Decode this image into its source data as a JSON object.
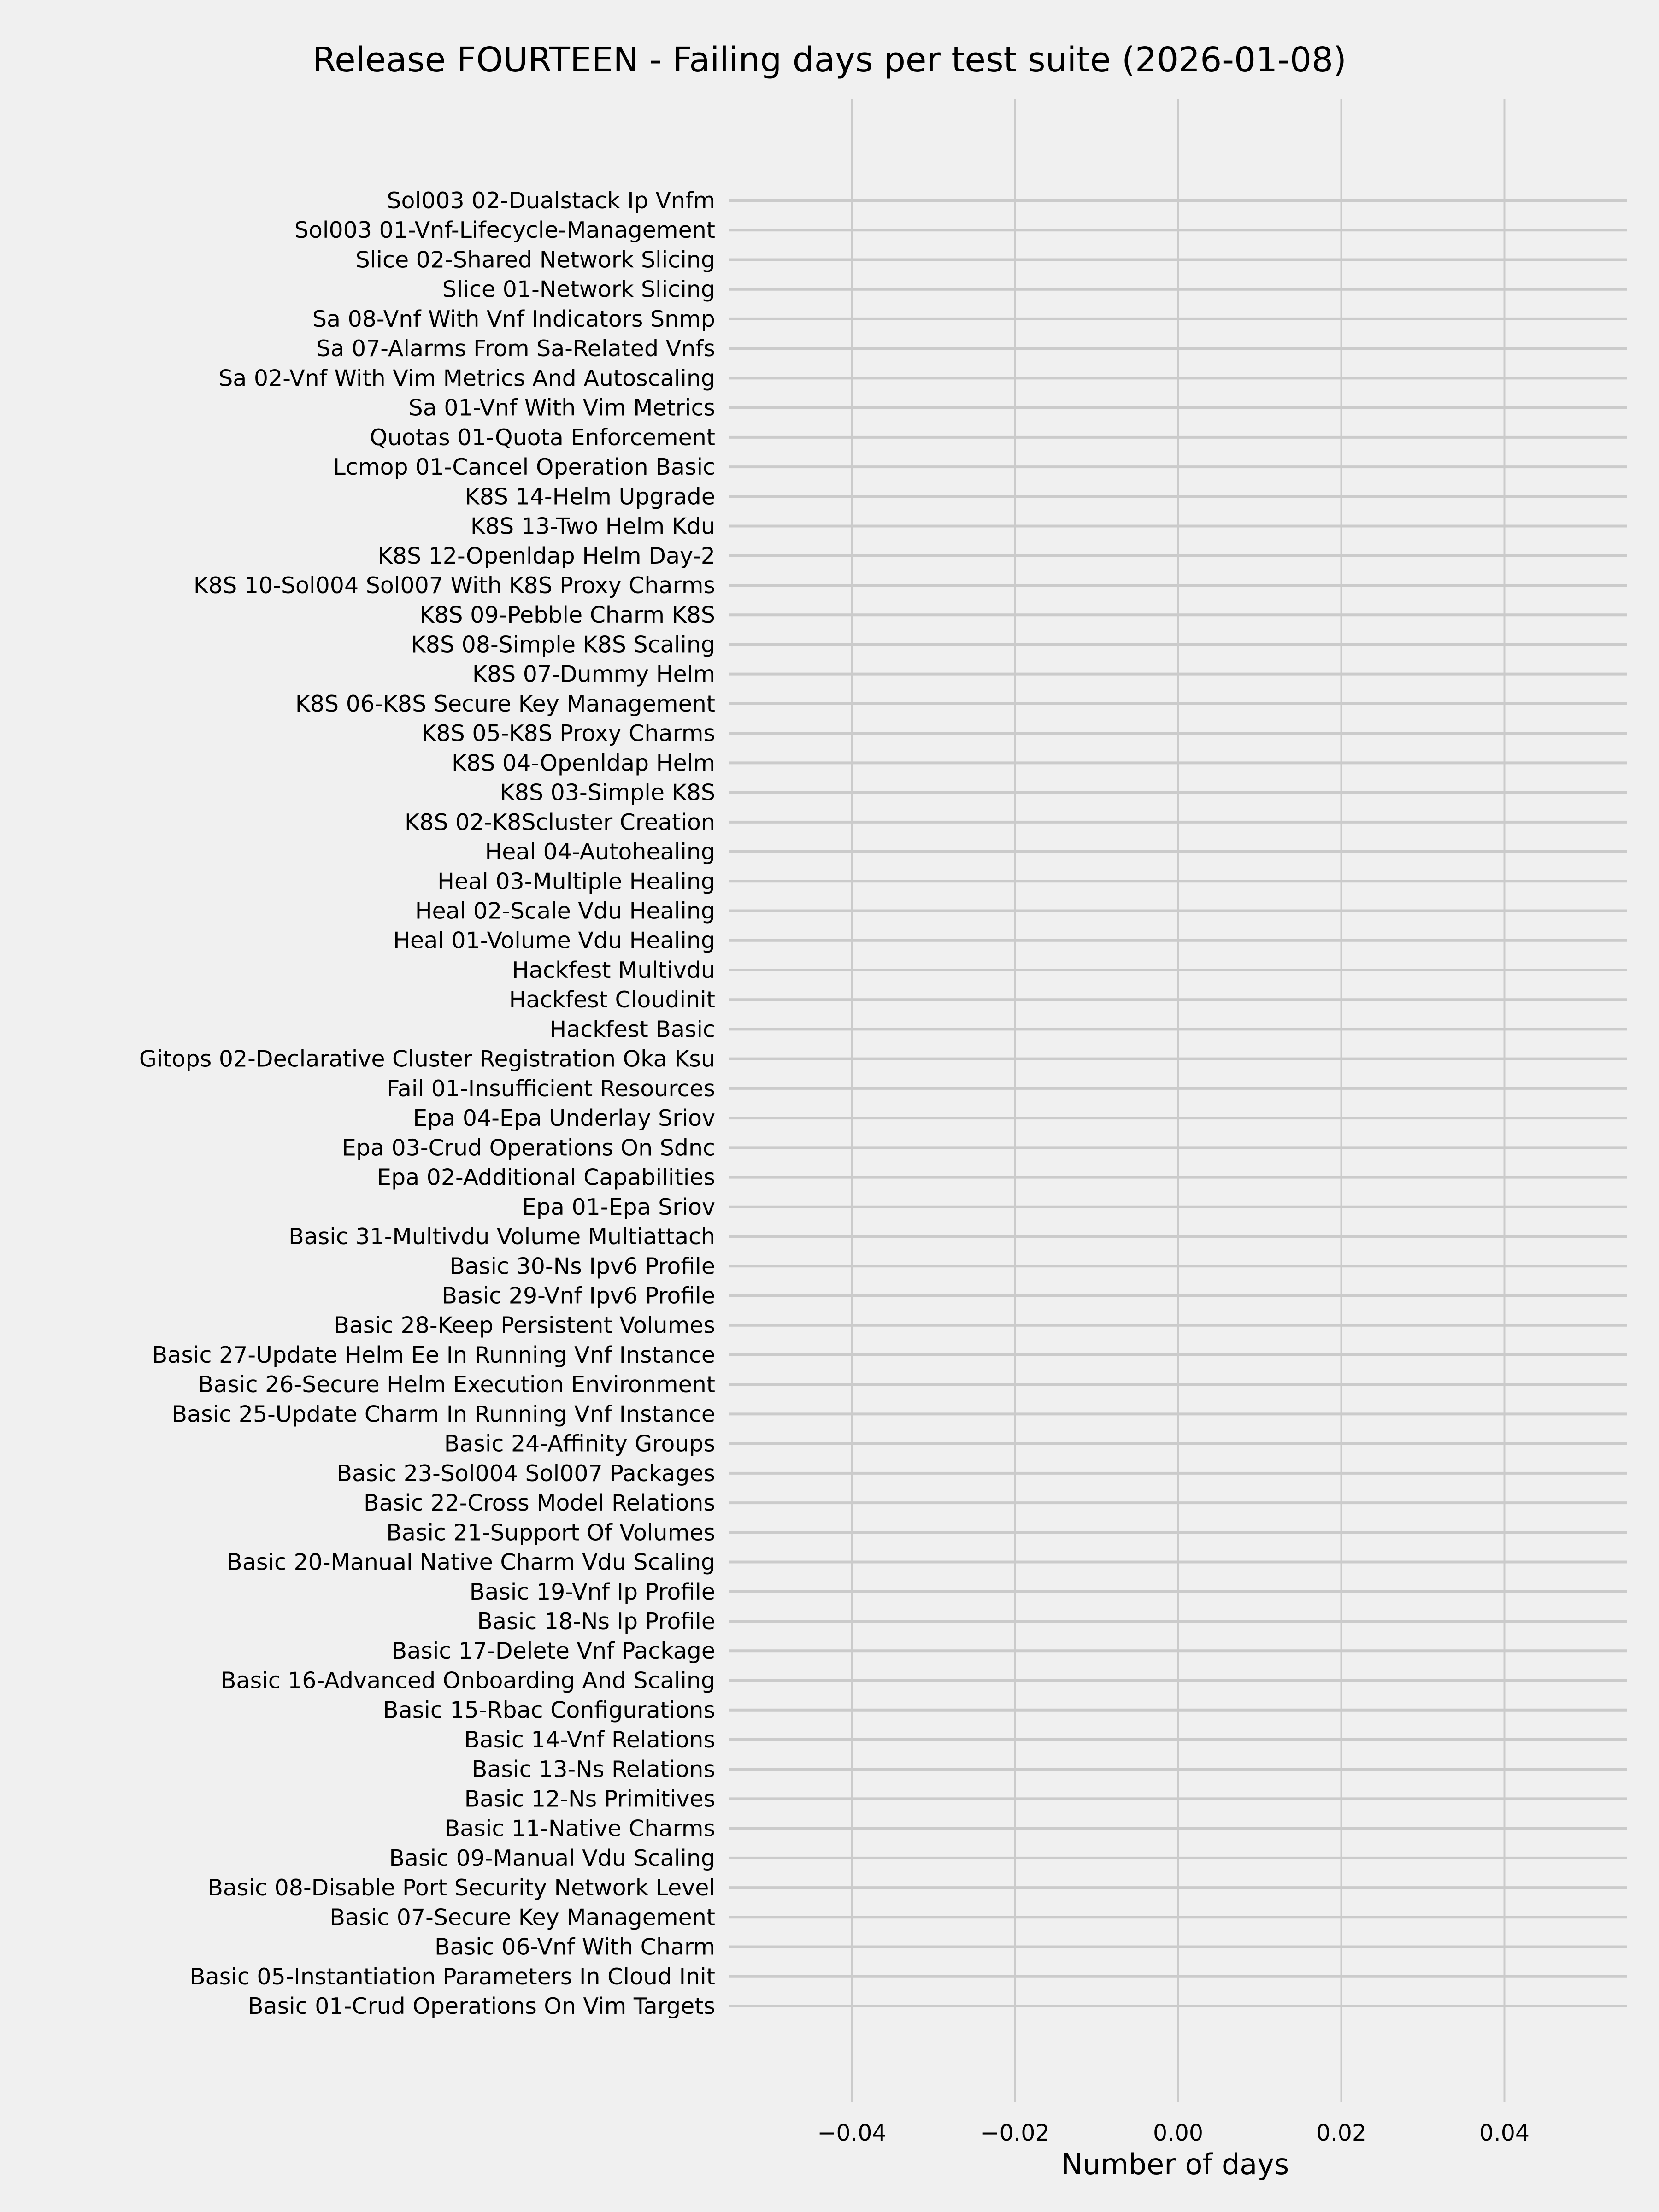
{
  "chart_data": {
    "type": "bar",
    "orientation": "horizontal",
    "title": "Release FOURTEEN - Failing days per test suite (2026-01-08)",
    "xlabel": "Number of days",
    "ylabel": "",
    "xlim": [
      -0.055,
      0.055
    ],
    "xticks": [
      -0.04,
      -0.02,
      0.0,
      0.02,
      0.04
    ],
    "xtick_labels": [
      "−0.04",
      "−0.02",
      "0.00",
      "0.02",
      "0.04"
    ],
    "grid": true,
    "colors": {
      "background": "#f0f0f0",
      "grid": "#cbcbcb",
      "bar": "#008fd5"
    },
    "categories": [
      "Sol003 02-Dualstack Ip Vnfm",
      "Sol003 01-Vnf-Lifecycle-Management",
      "Slice 02-Shared Network Slicing",
      "Slice 01-Network Slicing",
      "Sa 08-Vnf With Vnf Indicators Snmp",
      "Sa 07-Alarms From Sa-Related Vnfs",
      "Sa 02-Vnf With Vim Metrics And Autoscaling",
      "Sa 01-Vnf With Vim Metrics",
      "Quotas 01-Quota Enforcement",
      "Lcmop 01-Cancel Operation Basic",
      "K8S 14-Helm Upgrade",
      "K8S 13-Two Helm Kdu",
      "K8S 12-Openldap Helm Day-2",
      "K8S 10-Sol004 Sol007 With K8S Proxy Charms",
      "K8S 09-Pebble Charm K8S",
      "K8S 08-Simple K8S Scaling",
      "K8S 07-Dummy Helm",
      "K8S 06-K8S Secure Key Management",
      "K8S 05-K8S Proxy Charms",
      "K8S 04-Openldap Helm",
      "K8S 03-Simple K8S",
      "K8S 02-K8Scluster Creation",
      "Heal 04-Autohealing",
      "Heal 03-Multiple Healing",
      "Heal 02-Scale Vdu Healing",
      "Heal 01-Volume Vdu Healing",
      "Hackfest Multivdu",
      "Hackfest Cloudinit",
      "Hackfest Basic",
      "Gitops 02-Declarative Cluster Registration Oka Ksu",
      "Fail 01-Insufficient Resources",
      "Epa 04-Epa Underlay Sriov",
      "Epa 03-Crud Operations On Sdnc",
      "Epa 02-Additional Capabilities",
      "Epa 01-Epa Sriov",
      "Basic 31-Multivdu Volume Multiattach",
      "Basic 30-Ns Ipv6 Profile",
      "Basic 29-Vnf Ipv6 Profile",
      "Basic 28-Keep Persistent Volumes",
      "Basic 27-Update Helm Ee In Running Vnf Instance",
      "Basic 26-Secure Helm Execution Environment",
      "Basic 25-Update Charm In Running Vnf Instance",
      "Basic 24-Affinity Groups",
      "Basic 23-Sol004 Sol007 Packages",
      "Basic 22-Cross Model Relations",
      "Basic 21-Support Of Volumes",
      "Basic 20-Manual Native Charm Vdu Scaling",
      "Basic 19-Vnf Ip Profile",
      "Basic 18-Ns Ip Profile",
      "Basic 17-Delete Vnf Package",
      "Basic 16-Advanced Onboarding And Scaling",
      "Basic 15-Rbac Configurations",
      "Basic 14-Vnf Relations",
      "Basic 13-Ns Relations",
      "Basic 12-Ns Primitives",
      "Basic 11-Native Charms",
      "Basic 09-Manual Vdu Scaling",
      "Basic 08-Disable Port Security Network Level",
      "Basic 07-Secure Key Management",
      "Basic 06-Vnf With Charm",
      "Basic 05-Instantiation Parameters In Cloud Init",
      "Basic 01-Crud Operations On Vim Targets"
    ],
    "values": [
      0,
      0,
      0,
      0,
      0,
      0,
      0,
      0,
      0,
      0,
      0,
      0,
      0,
      0,
      0,
      0,
      0,
      0,
      0,
      0,
      0,
      0,
      0,
      0,
      0,
      0,
      0,
      0,
      0,
      0,
      0,
      0,
      0,
      0,
      0,
      0,
      0,
      0,
      0,
      0,
      0,
      0,
      0,
      0,
      0,
      0,
      0,
      0,
      0,
      0,
      0,
      0,
      0,
      0,
      0,
      0,
      0,
      0,
      0,
      0,
      0,
      0
    ]
  }
}
